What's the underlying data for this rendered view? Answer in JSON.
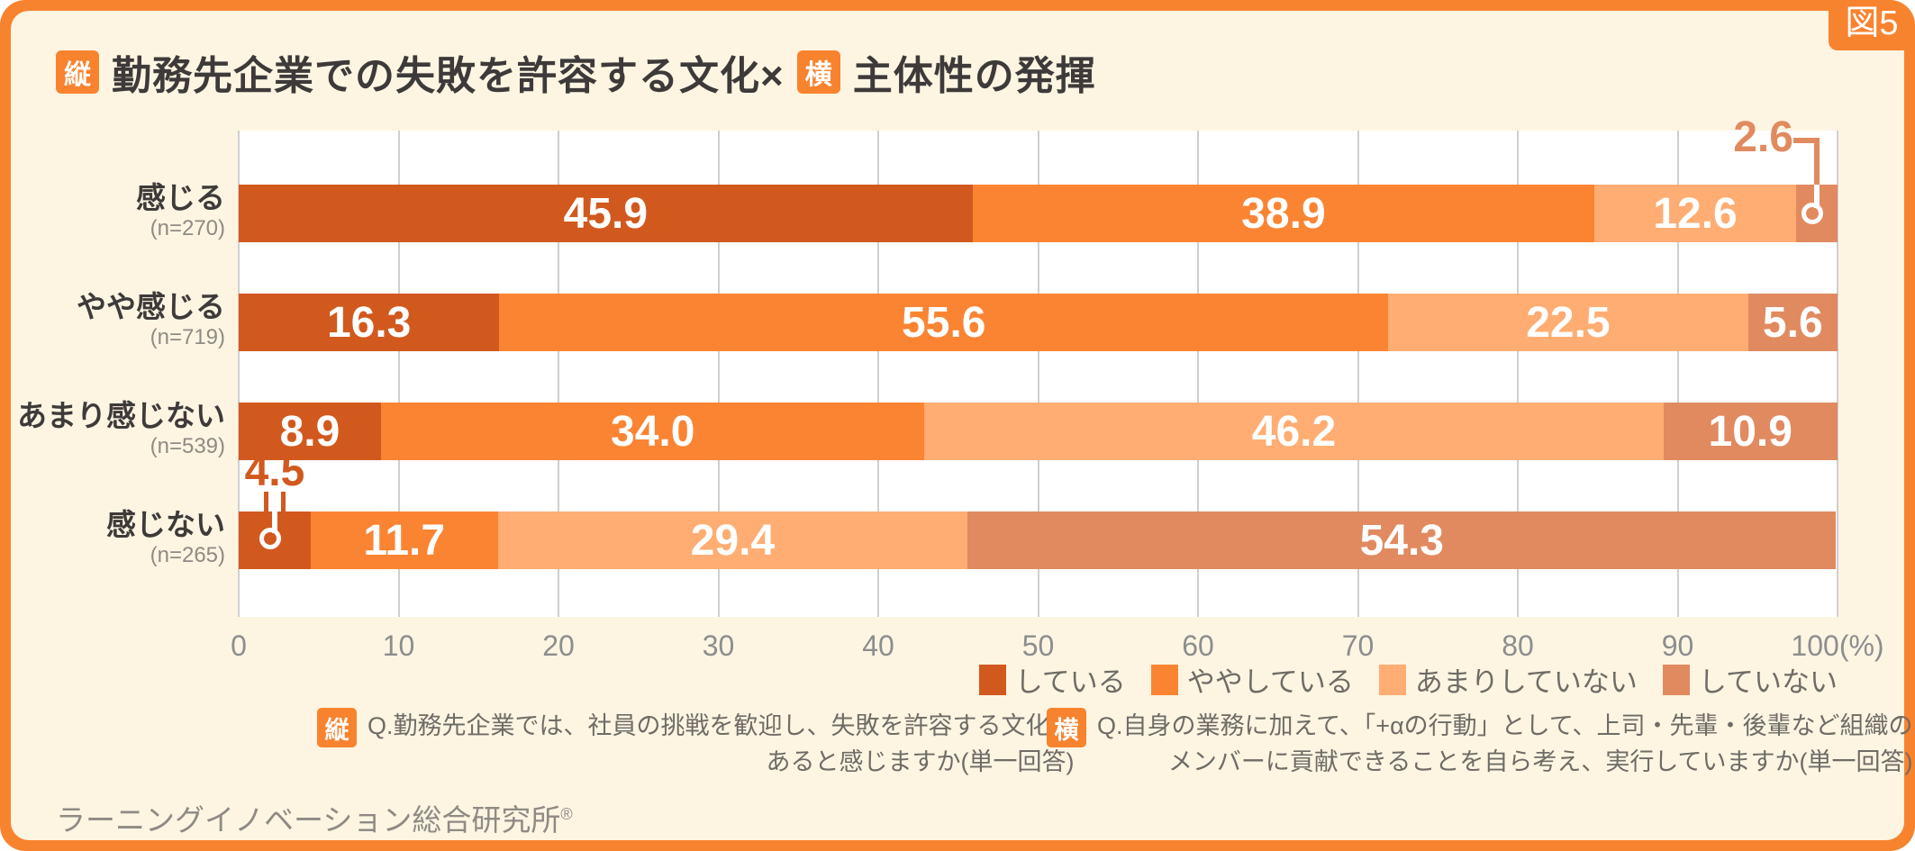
{
  "figure_label": "図5",
  "title": {
    "badge_v": "縦",
    "part1": "勤務先企業での失敗を許容する文化×",
    "badge_h": "横",
    "part2": "主体性の発揮"
  },
  "colors": {
    "accent_orange": "#f8832f",
    "background_cream": "#fdf5e2",
    "plot_background": "#ffffff",
    "gridline": "#cfcfcf",
    "title_text": "#3e3a39",
    "axis_text": "#8d8d8d",
    "note_text": "#6f6b66"
  },
  "chart_data": {
    "type": "bar",
    "orientation": "horizontal-stacked",
    "categories": [
      "感じる",
      "やや感じる",
      "あまり感じない",
      "感じない"
    ],
    "category_ns": [
      "(n=270)",
      "(n=719)",
      "(n=539)",
      "(n=265)"
    ],
    "series": [
      {
        "name": "している",
        "color": "#d2591e",
        "values": [
          45.9,
          16.3,
          8.9,
          4.5
        ]
      },
      {
        "name": "ややしている",
        "color": "#fb8433",
        "values": [
          38.9,
          55.6,
          34.0,
          11.7
        ]
      },
      {
        "name": "あまりしていない",
        "color": "#ffad72",
        "values": [
          12.6,
          22.5,
          46.2,
          29.4
        ]
      },
      {
        "name": "していない",
        "color": "#e18a60",
        "values": [
          2.6,
          5.6,
          10.9,
          54.3
        ]
      }
    ],
    "xlim": [
      0,
      100
    ],
    "x_ticks": [
      "0",
      "10",
      "20",
      "30",
      "40",
      "50",
      "60",
      "70",
      "80",
      "90",
      "100(%)"
    ],
    "grid": true,
    "legend_position": "bottom-right",
    "callouts": [
      {
        "row": 0,
        "series": 3,
        "label": "2.6",
        "style": "elbow"
      },
      {
        "row": 3,
        "series": 0,
        "label": "4.5",
        "style": "drop"
      }
    ]
  },
  "footnotes": [
    {
      "badge": "縦",
      "line1": "Q.勤務先企業では、社員の挑戦を歓迎し、失敗を許容する文化が",
      "line2": "あると感じますか(単一回答)"
    },
    {
      "badge": "横",
      "line1": "Q.自身の業務に加えて、「+αの行動」として、上司・先輩・後輩など組織の",
      "line2": "メンバーに貢献できることを自ら考え、実行していますか(単一回答)"
    }
  ],
  "source": "ラーニングイノベーション総合研究所",
  "source_mark": "®"
}
